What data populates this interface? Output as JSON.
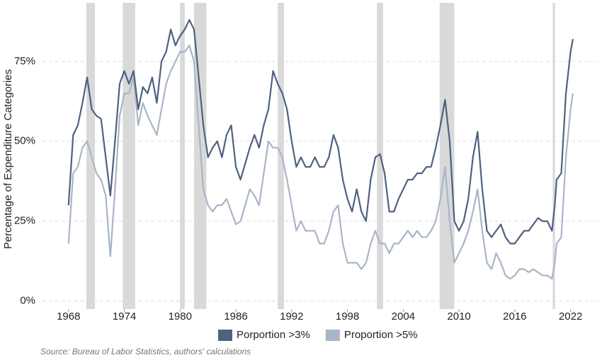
{
  "chart_data": {
    "type": "line",
    "y_label": "Percentage of Expenditure Categories",
    "source": "Source: Bureau of Labor Statistics, authors' calculations",
    "x": [
      1968.0,
      1968.5,
      1969.0,
      1969.5,
      1970.0,
      1970.5,
      1971.0,
      1971.5,
      1972.0,
      1972.5,
      1973.0,
      1973.5,
      1974.0,
      1974.5,
      1975.0,
      1975.5,
      1976.0,
      1976.5,
      1977.0,
      1977.5,
      1978.0,
      1978.5,
      1979.0,
      1979.5,
      1980.0,
      1980.5,
      1981.0,
      1981.5,
      1982.0,
      1982.5,
      1983.0,
      1983.5,
      1984.0,
      1984.5,
      1985.0,
      1985.5,
      1986.0,
      1986.5,
      1987.0,
      1987.5,
      1988.0,
      1988.5,
      1989.0,
      1989.5,
      1990.0,
      1990.5,
      1991.0,
      1991.5,
      1992.0,
      1992.5,
      1993.0,
      1993.5,
      1994.0,
      1994.5,
      1995.0,
      1995.5,
      1996.0,
      1996.5,
      1997.0,
      1997.5,
      1998.0,
      1998.5,
      1999.0,
      1999.5,
      2000.0,
      2000.5,
      2001.0,
      2001.5,
      2002.0,
      2002.5,
      2003.0,
      2003.5,
      2004.0,
      2004.5,
      2005.0,
      2005.5,
      2006.0,
      2006.5,
      2007.0,
      2007.5,
      2008.0,
      2008.5,
      2009.0,
      2009.5,
      2010.0,
      2010.5,
      2011.0,
      2011.5,
      2012.0,
      2012.5,
      2013.0,
      2013.5,
      2014.0,
      2014.5,
      2015.0,
      2015.5,
      2016.0,
      2016.5,
      2017.0,
      2017.5,
      2018.0,
      2018.5,
      2019.0,
      2019.5,
      2020.0,
      2020.3,
      2020.5,
      2021.0,
      2021.5,
      2022.0,
      2022.25
    ],
    "series": [
      {
        "name": "Porportion >3%",
        "color": "#4f6180",
        "values": [
          30,
          52,
          55,
          62,
          70,
          60,
          58,
          57,
          45,
          33,
          50,
          68,
          72,
          68,
          72,
          60,
          67,
          65,
          70,
          62,
          75,
          78,
          85,
          80,
          83,
          85,
          88,
          85,
          70,
          55,
          45,
          48,
          50,
          45,
          52,
          55,
          42,
          38,
          43,
          48,
          52,
          48,
          55,
          60,
          72,
          68,
          65,
          60,
          50,
          42,
          45,
          42,
          42,
          45,
          42,
          42,
          45,
          52,
          48,
          38,
          32,
          28,
          35,
          28,
          25,
          38,
          45,
          46,
          40,
          28,
          28,
          32,
          35,
          38,
          38,
          40,
          40,
          42,
          42,
          48,
          55,
          63,
          50,
          25,
          22,
          25,
          32,
          45,
          53,
          35,
          22,
          20,
          22,
          24,
          20,
          18,
          18,
          20,
          22,
          22,
          24,
          26,
          25,
          25,
          22,
          30,
          38,
          40,
          65,
          78,
          82
        ]
      },
      {
        "name": "Proportion >5%",
        "color": "#a9b5c8",
        "values": [
          18,
          40,
          42,
          48,
          50,
          45,
          40,
          38,
          33,
          14,
          35,
          58,
          65,
          65,
          70,
          55,
          62,
          58,
          55,
          52,
          60,
          68,
          72,
          75,
          78,
          78,
          80,
          75,
          55,
          35,
          30,
          28,
          30,
          30,
          32,
          28,
          24,
          25,
          30,
          35,
          33,
          30,
          40,
          50,
          48,
          48,
          45,
          38,
          30,
          22,
          25,
          22,
          22,
          22,
          18,
          18,
          22,
          28,
          30,
          18,
          12,
          12,
          12,
          10,
          12,
          18,
          22,
          18,
          18,
          15,
          18,
          18,
          20,
          22,
          20,
          22,
          20,
          20,
          22,
          25,
          32,
          42,
          25,
          12,
          15,
          18,
          22,
          28,
          35,
          22,
          12,
          10,
          15,
          12,
          8,
          7,
          8,
          10,
          10,
          9,
          10,
          9,
          8,
          8,
          7,
          12,
          18,
          20,
          45,
          60,
          65
        ]
      }
    ],
    "recessions": [
      [
        1969.92,
        1970.83
      ],
      [
        1973.83,
        1975.17
      ],
      [
        1980.0,
        1980.5
      ],
      [
        1981.5,
        1982.83
      ],
      [
        1990.5,
        1991.17
      ],
      [
        2001.17,
        2001.83
      ],
      [
        2007.92,
        2009.5
      ],
      [
        2020.08,
        2020.33
      ]
    ],
    "xlim": [
      1965.2,
      2025
    ],
    "xticks": [
      1968,
      1974,
      1980,
      1986,
      1992,
      1998,
      2004,
      2010,
      2016,
      2022
    ],
    "ylim": [
      -2.5,
      92
    ],
    "yticks": [
      {
        "value": 0,
        "label": "0%"
      },
      {
        "value": 25,
        "label": "25%"
      },
      {
        "value": 50,
        "label": "50%"
      },
      {
        "value": 75,
        "label": "75%"
      }
    ],
    "grid": true,
    "legend": "bottom"
  }
}
